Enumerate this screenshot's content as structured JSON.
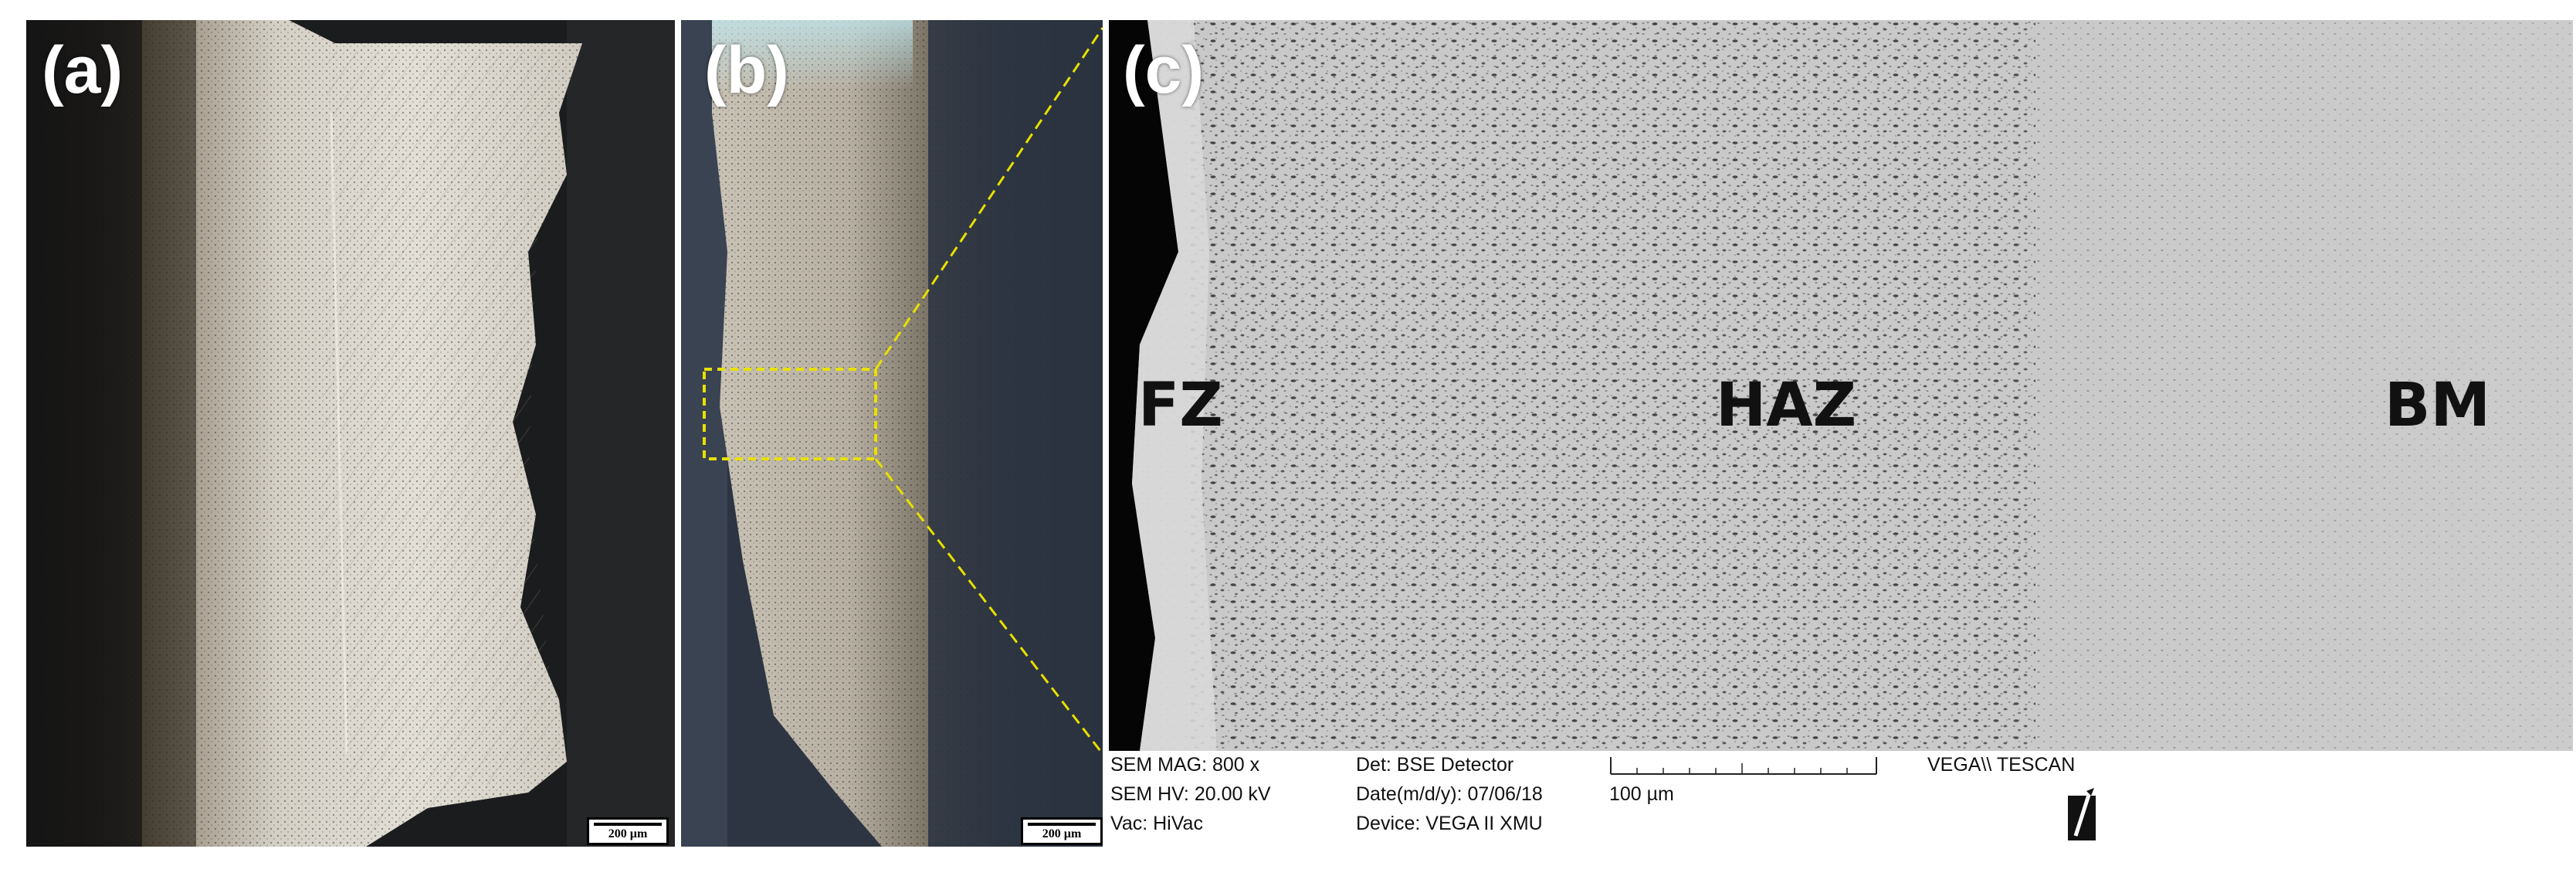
{
  "panels": {
    "a": {
      "label": "(a)",
      "scale_text": "200 µm"
    },
    "b": {
      "label": "(b)",
      "scale_text": "200 µm"
    },
    "c": {
      "label": "(c)",
      "zones": {
        "fz": "FZ",
        "haz": "HAZ",
        "bm": "BM"
      }
    }
  },
  "sem_info": {
    "mag": "SEM MAG: 800 x",
    "hv": "SEM HV: 20.00 kV",
    "vac": "Vac: HiVac",
    "det": "Det: BSE Detector",
    "date": "Date(m/d/y): 07/06/18",
    "device": "Device: VEGA II XMU",
    "scale_text": "100 µm",
    "brand": "VEGA\\\\ TESCAN"
  },
  "colors": {
    "highlight_box": "#e8e000",
    "sem_background": "#c9c9c9",
    "optical_background": "#1b1c1e"
  },
  "icons": {
    "brand_logo": "tescan-logo-icon"
  }
}
